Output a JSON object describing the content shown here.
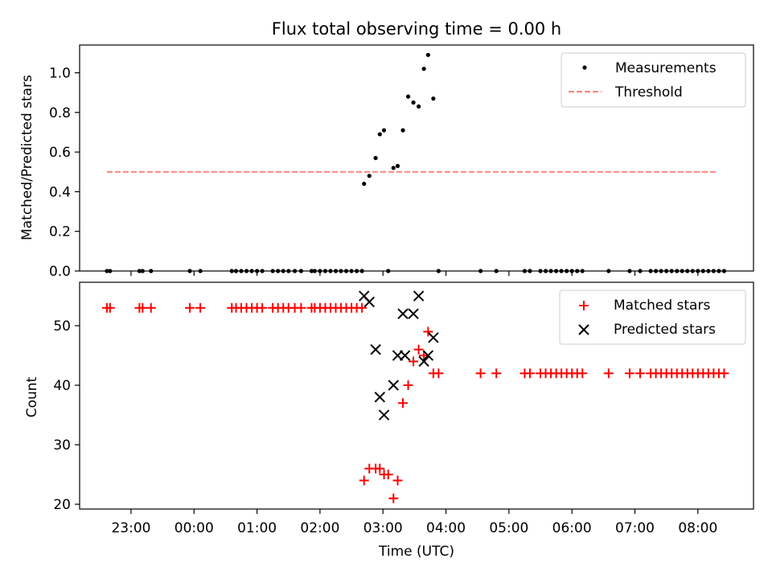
{
  "chart_data": [
    {
      "type": "scatter",
      "title": "Flux total observing time = 0.00 h",
      "xlabel": "",
      "ylabel": "Matched/Predicted stars",
      "ylim": [
        0.0,
        1.14
      ],
      "xlim": [
        "22:11",
        "08:53"
      ],
      "y_ticks": [
        "0.0",
        "0.2",
        "0.4",
        "0.6",
        "0.8",
        "1.0"
      ],
      "legend_position": "top-right",
      "colors": {
        "measurements": "#000000",
        "threshold": "#ff7f7f"
      },
      "series": [
        {
          "name": "Measurements",
          "marker": "dot",
          "points": [
            [
              "22:37",
              0.0
            ],
            [
              "22:40",
              0.0
            ],
            [
              "23:08",
              0.0
            ],
            [
              "23:11",
              0.0
            ],
            [
              "23:19",
              0.0
            ],
            [
              "23:56",
              0.0
            ],
            [
              "00:06",
              0.0
            ],
            [
              "00:36",
              0.0
            ],
            [
              "00:40",
              0.0
            ],
            [
              "00:45",
              0.0
            ],
            [
              "00:50",
              0.0
            ],
            [
              "00:55",
              0.0
            ],
            [
              "01:00",
              0.0
            ],
            [
              "01:05",
              0.0
            ],
            [
              "01:15",
              0.0
            ],
            [
              "01:20",
              0.0
            ],
            [
              "01:25",
              0.0
            ],
            [
              "01:30",
              0.0
            ],
            [
              "01:36",
              0.0
            ],
            [
              "01:42",
              0.0
            ],
            [
              "01:52",
              0.0
            ],
            [
              "01:55",
              0.0
            ],
            [
              "02:00",
              0.0
            ],
            [
              "02:05",
              0.0
            ],
            [
              "02:10",
              0.0
            ],
            [
              "02:15",
              0.0
            ],
            [
              "02:20",
              0.0
            ],
            [
              "02:25",
              0.0
            ],
            [
              "02:30",
              0.0
            ],
            [
              "02:35",
              0.0
            ],
            [
              "02:40",
              0.0
            ],
            [
              "02:42",
              0.44
            ],
            [
              "02:47",
              0.48
            ],
            [
              "02:53",
              0.57
            ],
            [
              "02:57",
              0.69
            ],
            [
              "03:01",
              0.71
            ],
            [
              "03:05",
              0.0
            ],
            [
              "03:10",
              0.52
            ],
            [
              "03:14",
              0.53
            ],
            [
              "03:19",
              0.71
            ],
            [
              "03:24",
              0.88
            ],
            [
              "03:29",
              0.85
            ],
            [
              "03:34",
              0.83
            ],
            [
              "03:39",
              1.02
            ],
            [
              "03:43",
              1.09
            ],
            [
              "03:48",
              0.87
            ],
            [
              "03:53",
              0.0
            ],
            [
              "04:33",
              0.0
            ],
            [
              "04:48",
              0.0
            ],
            [
              "05:15",
              0.0
            ],
            [
              "05:20",
              0.0
            ],
            [
              "05:30",
              0.0
            ],
            [
              "05:35",
              0.0
            ],
            [
              "05:40",
              0.0
            ],
            [
              "05:45",
              0.0
            ],
            [
              "05:50",
              0.0
            ],
            [
              "05:55",
              0.0
            ],
            [
              "06:00",
              0.0
            ],
            [
              "06:05",
              0.0
            ],
            [
              "06:10",
              0.0
            ],
            [
              "06:35",
              0.0
            ],
            [
              "06:55",
              0.0
            ],
            [
              "07:05",
              0.0
            ],
            [
              "07:15",
              0.0
            ],
            [
              "07:20",
              0.0
            ],
            [
              "07:25",
              0.0
            ],
            [
              "07:30",
              0.0
            ],
            [
              "07:35",
              0.0
            ],
            [
              "07:40",
              0.0
            ],
            [
              "07:45",
              0.0
            ],
            [
              "07:50",
              0.0
            ],
            [
              "07:55",
              0.0
            ],
            [
              "08:00",
              0.0
            ],
            [
              "08:05",
              0.0
            ],
            [
              "08:10",
              0.0
            ],
            [
              "08:15",
              0.0
            ],
            [
              "08:20",
              0.0
            ],
            [
              "08:25",
              0.0
            ]
          ]
        },
        {
          "name": "Threshold",
          "marker": "dashed-line",
          "points": [
            [
              "22:37",
              0.5
            ],
            [
              "08:18",
              0.5
            ]
          ]
        }
      ]
    },
    {
      "type": "scatter",
      "title": "",
      "xlabel": "Time (UTC)",
      "ylabel": "Count",
      "ylim": [
        19.2,
        57.3
      ],
      "xlim": [
        "22:11",
        "08:53"
      ],
      "y_ticks": [
        "20",
        "30",
        "40",
        "50"
      ],
      "x_ticks": [
        "23:00",
        "00:00",
        "01:00",
        "02:00",
        "03:00",
        "04:00",
        "05:00",
        "06:00",
        "07:00",
        "08:00"
      ],
      "legend_position": "top-right",
      "colors": {
        "matched": "#ff0000",
        "predicted": "#000000"
      },
      "series": [
        {
          "name": "Matched stars",
          "marker": "plus",
          "points": [
            [
              "22:37",
              53
            ],
            [
              "22:40",
              53
            ],
            [
              "23:08",
              53
            ],
            [
              "23:11",
              53
            ],
            [
              "23:19",
              53
            ],
            [
              "23:56",
              53
            ],
            [
              "00:06",
              53
            ],
            [
              "00:36",
              53
            ],
            [
              "00:40",
              53
            ],
            [
              "00:45",
              53
            ],
            [
              "00:50",
              53
            ],
            [
              "00:55",
              53
            ],
            [
              "01:00",
              53
            ],
            [
              "01:05",
              53
            ],
            [
              "01:15",
              53
            ],
            [
              "01:20",
              53
            ],
            [
              "01:25",
              53
            ],
            [
              "01:30",
              53
            ],
            [
              "01:36",
              53
            ],
            [
              "01:42",
              53
            ],
            [
              "01:52",
              53
            ],
            [
              "01:55",
              53
            ],
            [
              "02:00",
              53
            ],
            [
              "02:05",
              53
            ],
            [
              "02:10",
              53
            ],
            [
              "02:15",
              53
            ],
            [
              "02:20",
              53
            ],
            [
              "02:25",
              53
            ],
            [
              "02:30",
              53
            ],
            [
              "02:35",
              53
            ],
            [
              "02:40",
              53
            ],
            [
              "02:42",
              24
            ],
            [
              "02:47",
              26
            ],
            [
              "02:53",
              26
            ],
            [
              "02:57",
              26
            ],
            [
              "03:01",
              25
            ],
            [
              "03:05",
              25
            ],
            [
              "03:10",
              21
            ],
            [
              "03:14",
              24
            ],
            [
              "03:19",
              37
            ],
            [
              "03:24",
              40
            ],
            [
              "03:29",
              44
            ],
            [
              "03:34",
              46
            ],
            [
              "03:39",
              45
            ],
            [
              "03:43",
              49
            ],
            [
              "03:48",
              42
            ],
            [
              "03:53",
              42
            ],
            [
              "04:33",
              42
            ],
            [
              "04:48",
              42
            ],
            [
              "05:15",
              42
            ],
            [
              "05:20",
              42
            ],
            [
              "05:30",
              42
            ],
            [
              "05:35",
              42
            ],
            [
              "05:40",
              42
            ],
            [
              "05:45",
              42
            ],
            [
              "05:50",
              42
            ],
            [
              "05:55",
              42
            ],
            [
              "06:00",
              42
            ],
            [
              "06:05",
              42
            ],
            [
              "06:10",
              42
            ],
            [
              "06:35",
              42
            ],
            [
              "06:55",
              42
            ],
            [
              "07:05",
              42
            ],
            [
              "07:15",
              42
            ],
            [
              "07:20",
              42
            ],
            [
              "07:25",
              42
            ],
            [
              "07:30",
              42
            ],
            [
              "07:35",
              42
            ],
            [
              "07:40",
              42
            ],
            [
              "07:45",
              42
            ],
            [
              "07:50",
              42
            ],
            [
              "07:55",
              42
            ],
            [
              "08:00",
              42
            ],
            [
              "08:05",
              42
            ],
            [
              "08:10",
              42
            ],
            [
              "08:15",
              42
            ],
            [
              "08:20",
              42
            ],
            [
              "08:25",
              42
            ]
          ]
        },
        {
          "name": "Predicted stars",
          "marker": "x",
          "points": [
            [
              "02:42",
              55
            ],
            [
              "02:47",
              54
            ],
            [
              "02:53",
              46
            ],
            [
              "02:57",
              38
            ],
            [
              "03:01",
              35
            ],
            [
              "03:10",
              40
            ],
            [
              "03:14",
              45
            ],
            [
              "03:19",
              52
            ],
            [
              "03:21",
              45
            ],
            [
              "03:29",
              52
            ],
            [
              "03:34",
              55
            ],
            [
              "03:39",
              44
            ],
            [
              "03:43",
              45
            ],
            [
              "03:48",
              48
            ]
          ]
        }
      ]
    }
  ]
}
